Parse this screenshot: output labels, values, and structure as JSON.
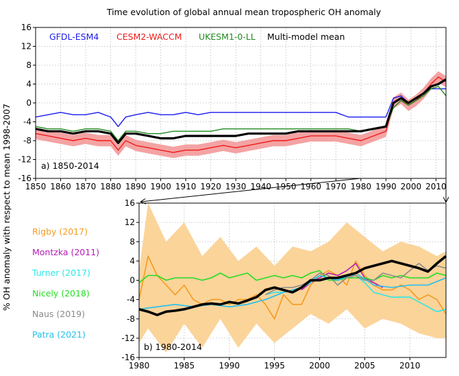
{
  "figure": {
    "title": "Time evolution of global annual mean tropospheric OH anomaly",
    "ylabel": "% OH anomaly with respect to mean 1998-2007"
  },
  "colors": {
    "gfdl": "#1a1aee",
    "cesm": "#ee1a1a",
    "cesm_band": "#f4a3a3",
    "ukesm": "#1f8a1f",
    "mmm": "#000000",
    "rigby": "#f59a1d",
    "rigby_band": "#fbd49a",
    "montzka": "#b41bb4",
    "turner": "#2ee6e6",
    "nicely": "#22dd22",
    "naus": "#8a8a8a",
    "patra": "#20c0ee"
  },
  "chart_data": [
    {
      "type": "line",
      "panel_label": "a) 1850-2014",
      "xlim": [
        1850,
        2014
      ],
      "ylim": [
        -16,
        16
      ],
      "xticks": [
        1850,
        1860,
        1870,
        1880,
        1890,
        1900,
        1910,
        1920,
        1930,
        1940,
        1950,
        1960,
        1970,
        1980,
        1990,
        2000,
        2010
      ],
      "yticks": [
        -16,
        -12,
        -8,
        -4,
        0,
        4,
        8,
        12,
        16
      ],
      "grid": true,
      "legend": "top, inline",
      "x": [
        1850,
        1855,
        1860,
        1865,
        1870,
        1875,
        1880,
        1883,
        1886,
        1890,
        1895,
        1900,
        1905,
        1910,
        1915,
        1920,
        1925,
        1930,
        1935,
        1940,
        1945,
        1950,
        1955,
        1960,
        1965,
        1970,
        1975,
        1980,
        1985,
        1990,
        1993,
        1996,
        1999,
        2002,
        2005,
        2008,
        2011,
        2014
      ],
      "series": [
        {
          "name": "GFDL-ESM4",
          "color_key": "gfdl",
          "values": [
            -3.0,
            -2.5,
            -2.0,
            -2.5,
            -2.5,
            -2.0,
            -3.0,
            -5.0,
            -3.0,
            -2.5,
            -2.0,
            -2.5,
            -2.5,
            -2.0,
            -2.5,
            -2.0,
            -2.0,
            -2.0,
            -2.0,
            -2.0,
            -2.0,
            -2.0,
            -2.0,
            -2.0,
            -2.0,
            -2.0,
            -3.0,
            -3.0,
            -3.0,
            -3.0,
            1.0,
            1.5,
            0.0,
            1.0,
            2.0,
            3.0,
            3.0,
            3.0
          ]
        },
        {
          "name": "CESM2-WACCM",
          "color_key": "cesm",
          "values": [
            -6.5,
            -7.0,
            -7.5,
            -8.0,
            -7.5,
            -8.0,
            -8.0,
            -10.0,
            -8.0,
            -9.0,
            -9.5,
            -10.0,
            -10.5,
            -10.0,
            -10.0,
            -9.5,
            -9.0,
            -9.5,
            -9.0,
            -8.5,
            -8.0,
            -8.0,
            -7.5,
            -7.0,
            -7.0,
            -7.0,
            -7.5,
            -8.0,
            -7.0,
            -6.0,
            0.0,
            1.0,
            -0.5,
            0.5,
            2.0,
            4.0,
            5.5,
            4.5
          ]
        },
        {
          "name": "UKESM1-0-LL",
          "color_key": "ukesm",
          "values": [
            -5.0,
            -5.5,
            -5.5,
            -6.0,
            -5.5,
            -5.5,
            -6.0,
            -8.0,
            -6.0,
            -6.0,
            -6.5,
            -6.5,
            -6.0,
            -6.0,
            -6.0,
            -6.0,
            -5.5,
            -5.5,
            -5.5,
            -5.5,
            -5.5,
            -5.5,
            -5.5,
            -5.5,
            -5.5,
            -5.5,
            -5.5,
            -6.0,
            -5.5,
            -5.0,
            -1.0,
            0.5,
            -0.5,
            0.5,
            1.5,
            3.0,
            3.5,
            1.5
          ]
        },
        {
          "name": "Multi-model mean",
          "color_key": "mmm",
          "values": [
            -5.5,
            -6.0,
            -6.0,
            -6.5,
            -6.0,
            -6.0,
            -6.5,
            -8.5,
            -6.5,
            -6.5,
            -7.0,
            -7.5,
            -7.5,
            -7.0,
            -7.0,
            -7.0,
            -7.0,
            -7.0,
            -6.5,
            -6.5,
            -6.5,
            -6.5,
            -6.0,
            -6.0,
            -6.0,
            -6.0,
            -6.0,
            -6.0,
            -5.5,
            -5.0,
            0.0,
            1.0,
            0.0,
            1.0,
            2.0,
            3.5,
            4.0,
            5.0
          ]
        }
      ],
      "bands": [
        {
          "of": "CESM2-WACCM",
          "color_key": "cesm_band",
          "half_width": 1.2
        }
      ]
    },
    {
      "type": "line",
      "panel_label": "b) 1980-2014",
      "xlim": [
        1980,
        2014
      ],
      "ylim": [
        -16,
        16
      ],
      "xticks": [
        1980,
        1985,
        1990,
        1995,
        2000,
        2005,
        2010
      ],
      "yticks": [
        -16,
        -12,
        -8,
        -4,
        0,
        4,
        8,
        12,
        16
      ],
      "grid": true,
      "legend": "left, outside",
      "band": {
        "of": "Rigby (2017)",
        "color_key": "rigby_band",
        "x": [
          1980,
          1981,
          1983,
          1985,
          1987,
          1989,
          1991,
          1993,
          1995,
          1997,
          1999,
          2001,
          2003,
          2005,
          2007,
          2009,
          2011,
          2013,
          2014
        ],
        "upper": [
          2.0,
          16.0,
          8.0,
          12.0,
          5.0,
          9.0,
          4.0,
          7.0,
          3.0,
          7.0,
          6.0,
          8.0,
          12.0,
          9.0,
          6.0,
          8.0,
          7.0,
          5.0,
          6.0
        ],
        "lower": [
          -13.0,
          -10.0,
          -15.0,
          -9.0,
          -14.0,
          -8.0,
          -14.0,
          -9.0,
          -13.0,
          -10.0,
          -7.0,
          -9.0,
          -6.0,
          -10.0,
          -8.0,
          -9.0,
          -11.0,
          -12.0,
          -12.0
        ]
      },
      "series": [
        {
          "name": "Rigby (2017)",
          "color_key": "rigby",
          "x": [
            1980,
            1981,
            1982,
            1983,
            1984,
            1985,
            1986,
            1987,
            1988,
            1989,
            1990,
            1991,
            1992,
            1993,
            1994,
            1995,
            1996,
            1997,
            1998,
            1999,
            2000,
            2001,
            2002,
            2003,
            2004,
            2005,
            2006,
            2007,
            2008,
            2009,
            2010,
            2011,
            2012,
            2013,
            2014
          ],
          "values": [
            -4.0,
            5.0,
            1.0,
            -1.0,
            -3.0,
            -1.0,
            -4.0,
            -5.0,
            -4.0,
            -4.0,
            -5.0,
            -4.0,
            -4.0,
            -3.0,
            -5.0,
            -8.0,
            -3.0,
            -5.0,
            -5.0,
            -1.0,
            1.0,
            2.0,
            1.0,
            -1.0,
            4.0,
            1.0,
            -1.0,
            -2.0,
            -2.0,
            -1.0,
            -2.0,
            -4.0,
            -3.0,
            -4.0,
            -7.0
          ]
        },
        {
          "name": "Montzka (2011)",
          "color_key": "montzka",
          "x": [
            1998,
            1999,
            2000,
            2001,
            2002,
            2003,
            2004,
            2005,
            2006,
            2007
          ],
          "values": [
            -2.0,
            -0.5,
            0.5,
            1.5,
            1.0,
            2.0,
            3.5,
            0.5,
            -0.5,
            -1.5
          ]
        },
        {
          "name": "Turner (2017)",
          "color_key": "turner",
          "x": [
            1994,
            1995,
            1996,
            1997,
            1998,
            1999,
            2000,
            2001,
            2002,
            2003,
            2004,
            2005,
            2006,
            2007,
            2008,
            2009,
            2010,
            2011,
            2012,
            2013,
            2014
          ],
          "values": [
            -3.0,
            -2.5,
            -2.5,
            -2.0,
            -1.5,
            -0.5,
            1.0,
            0.5,
            0.0,
            1.0,
            1.0,
            -0.5,
            -2.5,
            -3.0,
            -3.5,
            -3.5,
            -3.5,
            -4.5,
            -5.5,
            -6.5,
            -6.0
          ]
        },
        {
          "name": "Nicely (2018)",
          "color_key": "nicely",
          "x": [
            1980,
            1981,
            1982,
            1983,
            1984,
            1985,
            1986,
            1987,
            1988,
            1989,
            1990,
            1991,
            1992,
            1993,
            1994,
            1995,
            1996,
            1997,
            1998,
            1999,
            2000,
            2001,
            2002,
            2003,
            2004,
            2005,
            2006,
            2007,
            2008,
            2009,
            2010,
            2011,
            2012,
            2013,
            2014
          ],
          "values": [
            -0.5,
            1.0,
            1.0,
            0.0,
            0.5,
            0.5,
            0.5,
            0.0,
            0.5,
            1.5,
            0.5,
            1.0,
            1.5,
            0.0,
            0.5,
            1.0,
            0.5,
            1.0,
            0.5,
            1.5,
            2.0,
            0.0,
            0.0,
            0.5,
            0.5,
            0.5,
            0.0,
            1.0,
            0.5,
            1.0,
            0.5,
            0.5,
            0.5,
            1.5,
            1.0
          ]
        },
        {
          "name": "Naus (2019)",
          "color_key": "naus",
          "x": [
            1994,
            1995,
            1996,
            1997,
            1998,
            1999,
            2000,
            2001,
            2002,
            2003,
            2004,
            2005,
            2006,
            2007,
            2008,
            2009,
            2010,
            2011,
            2012,
            2013,
            2014
          ],
          "values": [
            -3.0,
            -2.0,
            -1.5,
            -1.5,
            -1.0,
            0.0,
            1.5,
            1.0,
            -1.0,
            0.5,
            1.0,
            0.0,
            0.0,
            1.5,
            1.0,
            0.5,
            2.0,
            3.5,
            2.0,
            3.0,
            2.5
          ]
        },
        {
          "name": "Patra (2021)",
          "color_key": "patra",
          "x": [
            1980,
            1982,
            1984,
            1986,
            1988,
            1990,
            1992,
            1994,
            1996,
            1998,
            2000,
            2002,
            2004,
            2006,
            2008,
            2010,
            2012,
            2014
          ],
          "values": [
            -6.0,
            -5.5,
            -5.0,
            -5.5,
            -5.0,
            -5.5,
            -5.0,
            -4.0,
            -2.5,
            -1.5,
            1.0,
            0.0,
            1.5,
            -1.0,
            -1.5,
            -1.0,
            -1.0,
            0.5
          ]
        },
        {
          "name": "Multi-model mean",
          "color_key": "mmm",
          "legend": false,
          "x": [
            1980,
            1981,
            1982,
            1983,
            1984,
            1985,
            1986,
            1987,
            1988,
            1989,
            1990,
            1991,
            1992,
            1993,
            1994,
            1995,
            1996,
            1997,
            1998,
            1999,
            2000,
            2001,
            2002,
            2003,
            2004,
            2005,
            2006,
            2007,
            2008,
            2009,
            2010,
            2011,
            2012,
            2013,
            2014
          ],
          "values": [
            -6.0,
            -6.5,
            -7.2,
            -6.5,
            -6.3,
            -6.0,
            -5.5,
            -5.0,
            -4.8,
            -5.0,
            -4.5,
            -4.8,
            -4.2,
            -3.5,
            -2.0,
            -1.5,
            -2.0,
            -2.5,
            -1.5,
            0.0,
            0.0,
            0.5,
            0.5,
            1.0,
            1.5,
            2.5,
            3.0,
            3.5,
            4.0,
            3.5,
            3.0,
            2.5,
            1.8,
            3.5,
            5.0
          ]
        }
      ]
    }
  ]
}
